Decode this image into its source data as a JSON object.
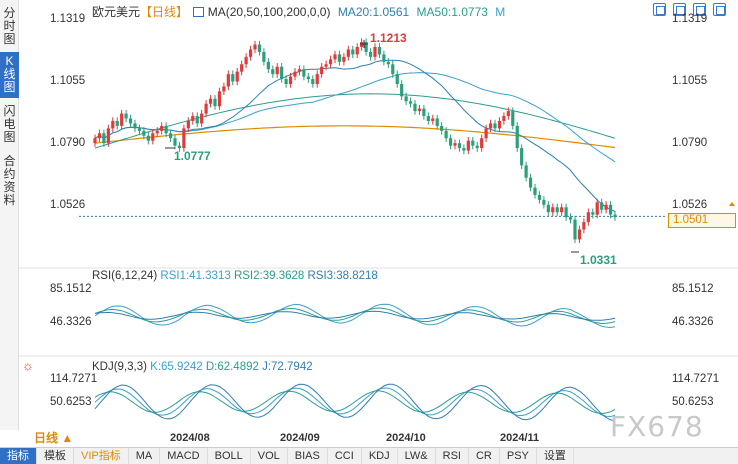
{
  "left_tabs": [
    {
      "label": "分时图",
      "active": false
    },
    {
      "label": "K线图",
      "active": true
    },
    {
      "label": "闪电图",
      "active": false
    },
    {
      "label": "合约资料",
      "active": false
    }
  ],
  "header": {
    "symbol": "欧元美元",
    "period_tag": "【日线】",
    "ma_label": "MA(20,50,100,200,0,0)",
    "ma20": "MA20:1.0561",
    "ma50": "MA50:1.0773",
    "ma_more": "M"
  },
  "price_axis": {
    "ticks": [
      "1.1319",
      "1.1055",
      "1.0790",
      "1.0526"
    ],
    "current": "1.0501"
  },
  "annotations": {
    "high": "1.1213",
    "low_left": "1.0777",
    "low_bottom": "1.0331"
  },
  "rsi": {
    "title": "RSI(6,12,24)",
    "rsi1": "RSI1:41.3313",
    "rsi2": "RSI2:39.3628",
    "rsi3": "RSI3:38.8218",
    "ticks": [
      "85.1512",
      "46.3326"
    ]
  },
  "kdj": {
    "title": "KDJ(9,3,3)",
    "k": "K:65.9242",
    "d": "D:62.4892",
    "j": "J:72.7942",
    "ticks": [
      "114.7271",
      "50.6253"
    ]
  },
  "x_axis": [
    "2024/08",
    "2024/09",
    "2024/10",
    "2024/11"
  ],
  "period_selector": "日线 ▲",
  "bottom_tabs": [
    "指标",
    "模板",
    "VIP指标",
    "MA",
    "MACD",
    "BOLL",
    "VOL",
    "BIAS",
    "CCI",
    "KDJ",
    "LW&",
    "RSI",
    "CR",
    "PSY",
    "设置"
  ],
  "watermark": "FX678",
  "colors": {
    "up": "#e03a3a",
    "down": "#2aa07a",
    "ma20": "#2f7fb0",
    "ma50": "#3aa0d0",
    "ma100": "#2a9d8f",
    "ma200": "#e08a00",
    "accent": "#2f6fc6"
  },
  "chart_data": {
    "type": "candlestick",
    "symbol": "EURUSD",
    "ylim": [
      1.031,
      1.134
    ],
    "ohlc_close_approx": [
      1.082,
      1.084,
      1.08,
      1.086,
      1.089,
      1.087,
      1.092,
      1.09,
      1.088,
      1.086,
      1.085,
      1.083,
      1.081,
      1.084,
      1.085,
      1.087,
      1.084,
      1.082,
      1.079,
      1.078,
      1.086,
      1.089,
      1.091,
      1.088,
      1.092,
      1.096,
      1.098,
      1.095,
      1.101,
      1.103,
      1.108,
      1.105,
      1.109,
      1.112,
      1.115,
      1.118,
      1.12,
      1.117,
      1.113,
      1.11,
      1.108,
      1.111,
      1.106,
      1.104,
      1.107,
      1.109,
      1.11,
      1.107,
      1.106,
      1.104,
      1.108,
      1.111,
      1.112,
      1.114,
      1.116,
      1.113,
      1.115,
      1.118,
      1.116,
      1.119,
      1.121,
      1.117,
      1.115,
      1.119,
      1.116,
      1.113,
      1.112,
      1.108,
      1.104,
      1.099,
      1.097,
      1.096,
      1.093,
      1.094,
      1.091,
      1.089,
      1.09,
      1.087,
      1.085,
      1.082,
      1.079,
      1.08,
      1.078,
      1.077,
      1.081,
      1.079,
      1.078,
      1.082,
      1.086,
      1.088,
      1.086,
      1.089,
      1.091,
      1.093,
      1.087,
      1.078,
      1.071,
      1.066,
      1.062,
      1.059,
      1.057,
      1.055,
      1.052,
      1.054,
      1.052,
      1.054,
      1.05,
      1.049,
      1.041,
      1.045,
      1.048,
      1.052,
      1.051,
      1.056,
      1.053,
      1.055,
      1.051,
      1.05
    ]
  }
}
